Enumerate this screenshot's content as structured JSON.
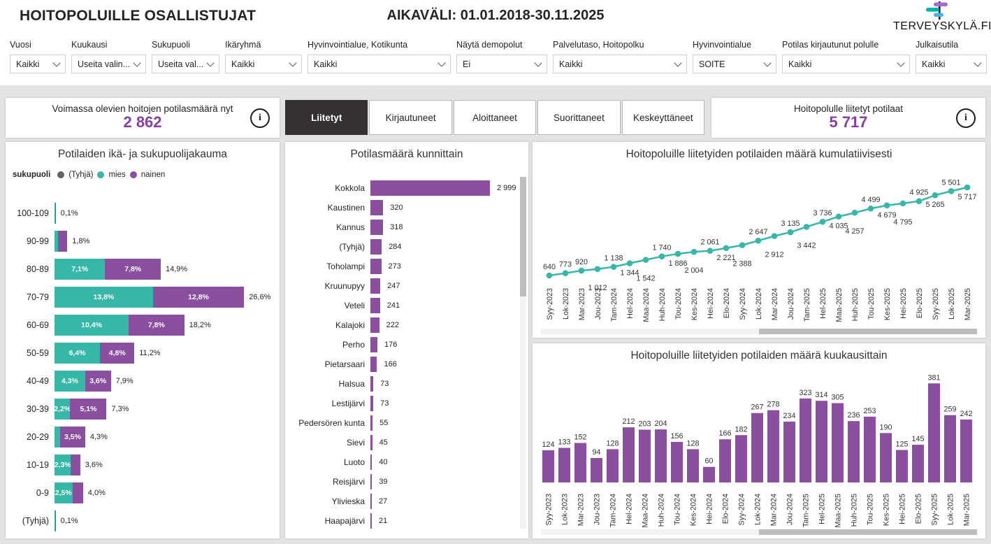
{
  "header": {
    "title": "HOITOPOLUILLE OSALLISTUJAT",
    "period": "AIKAVÄLI: 01.01.2018-30.11.2025",
    "logo_text": "TERVEYSKYLÄ.FI"
  },
  "filters": [
    {
      "label": "Vuosi",
      "value": "Kaikki"
    },
    {
      "label": "Kuukausi",
      "value": "Useita valin..."
    },
    {
      "label": "Sukupuoli",
      "value": "Useita val..."
    },
    {
      "label": "Ikäryhmä",
      "value": "Kaikki"
    },
    {
      "label": "Hyvinvointialue, Kotikunta",
      "value": "Kaikki"
    },
    {
      "label": "Näytä demopolut",
      "value": "Ei"
    },
    {
      "label": "Palvelutaso, Hoitopolku",
      "value": "Kaikki"
    },
    {
      "label": "Hyvinvointialue",
      "value": "SOITE"
    },
    {
      "label": "Potilas kirjautunut polulle",
      "value": "Kaikki"
    },
    {
      "label": "Julkaisutila",
      "value": "Kaikki"
    }
  ],
  "kpi_left": {
    "label": "Voimassa olevien hoitojen potilasmäärä nyt",
    "value": "2 862",
    "info_icon": "i"
  },
  "kpi_right": {
    "label": "Hoitopolulle liitetyt potilaat",
    "value": "5 717",
    "info_icon": "i"
  },
  "tabs": [
    {
      "label": "Liitetyt",
      "active": true
    },
    {
      "label": "Kirjautuneet",
      "active": false
    },
    {
      "label": "Aloittaneet",
      "active": false
    },
    {
      "label": "Suorittaneet",
      "active": false
    },
    {
      "label": "Keskeyttäneet",
      "active": false
    }
  ],
  "colors": {
    "purple": "#8b4f9f",
    "teal": "#36b7a8",
    "empty_gray": "#636363",
    "kpi_value": "#8640a5",
    "active_tab": "#333132",
    "page_bg": "#e3e3e3",
    "logo_purple": "#a668d5",
    "logo_teal": "#00b2a9",
    "logo_blue": "#41b6e6"
  },
  "chart_data": [
    {
      "type": "bar",
      "orientation": "horizontal-stacked",
      "title": "Potilaiden ikä- ja sukupuolijakauma",
      "legend_title": "sukupuoli",
      "legend": [
        {
          "label": "(Tyhjä)",
          "color": "#636363"
        },
        {
          "label": "mies",
          "color": "#36b7a8"
        },
        {
          "label": "nainen",
          "color": "#8b4f9f"
        }
      ],
      "categories": [
        "100-109",
        "90-99",
        "80-89",
        "70-79",
        "60-69",
        "50-59",
        "40-49",
        "30-39",
        "20-29",
        "10-19",
        "0-9",
        "(Tyhjä)"
      ],
      "series": [
        {
          "name": "mies",
          "color": "#36b7a8",
          "values": [
            0.05,
            0.5,
            7.1,
            13.8,
            10.4,
            6.4,
            4.3,
            2.2,
            0.8,
            2.3,
            2.5,
            0.05
          ],
          "labels": [
            "",
            "",
            "7,1%",
            "13,8%",
            "10,4%",
            "6,4%",
            "4,3%",
            "2,2%",
            "",
            "2,3%",
            "2,5%",
            ""
          ]
        },
        {
          "name": "nainen",
          "color": "#8b4f9f",
          "values": [
            0.05,
            1.3,
            7.8,
            12.8,
            7.8,
            4.8,
            3.6,
            5.1,
            3.5,
            1.3,
            1.5,
            0.05
          ],
          "labels": [
            "",
            "",
            "7,8%",
            "12,8%",
            "7,8%",
            "4,8%",
            "3,6%",
            "5,1%",
            "3,5%",
            "",
            "",
            ""
          ]
        }
      ],
      "totals": [
        "0,1%",
        "1,8%",
        "14,9%",
        "26,6%",
        "18,2%",
        "11,2%",
        "7,9%",
        "7,3%",
        "4,3%",
        "3,6%",
        "4,0%",
        "0,1%"
      ],
      "unit": "%"
    },
    {
      "type": "bar",
      "orientation": "horizontal",
      "title": "Potilasmäärä kunnittain",
      "categories": [
        "Kokkola",
        "Kaustinen",
        "Kannus",
        "(Tyhjä)",
        "Toholampi",
        "Kruunupyy",
        "Veteli",
        "Kalajoki",
        "Perho",
        "Pietarsaari",
        "Halsua",
        "Lestijärvi",
        "Pedersören kunta",
        "Sievi",
        "Luoto",
        "Reisjärvi",
        "Ylivieska",
        "Haapajärvi"
      ],
      "values": [
        2999,
        320,
        318,
        284,
        273,
        247,
        241,
        222,
        176,
        166,
        73,
        73,
        55,
        45,
        40,
        39,
        27,
        21
      ],
      "labels": [
        "2 999",
        "320",
        "318",
        "284",
        "273",
        "247",
        "241",
        "222",
        "176",
        "166",
        "73",
        "73",
        "55",
        "45",
        "40",
        "39",
        "27",
        "21"
      ],
      "bar_color": "#8b4f9f"
    },
    {
      "type": "line",
      "title": "Hoitopoluille liitetyiden potilaiden määrä kumulatiivisesti",
      "categories": [
        "Syy-2023",
        "Lok-2023",
        "Mar-2023",
        "Jou-2023",
        "Tam-2024",
        "Hel-2024",
        "Maa-2024",
        "Huh-2024",
        "Tou-2024",
        "Kes-2024",
        "Hei-2024",
        "Elo-2024",
        "Syy-2024",
        "Lok-2024",
        "Mar-2024",
        "Jou-2024",
        "Tam-2025",
        "Hel-2025",
        "Maa-2025",
        "Huh-2025",
        "Tou-2025",
        "Kes-2025",
        "Hei-2025",
        "Elo-2025",
        "Syy-2025",
        "Lok-2025",
        "Mar-2025"
      ],
      "values": [
        640,
        773,
        920,
        1012,
        1138,
        1344,
        1542,
        1740,
        1886,
        2004,
        2061,
        2221,
        2388,
        2647,
        2912,
        3135,
        3442,
        3736,
        4035,
        4257,
        4499,
        4679,
        4795,
        4925,
        5265,
        5501,
        5717
      ],
      "labels": [
        "640",
        "773",
        "920",
        "1 012",
        "1 138",
        "1 344",
        "1 542",
        "1 740",
        "1 886",
        "2 004",
        "2 061",
        "2 221",
        "2 388",
        "2 647",
        "2 912",
        "3 135",
        "3 442",
        "3 736",
        "4 035",
        "4 257",
        "4 499",
        "4 679",
        "4 795",
        "4 925",
        "5 265",
        "5 501",
        "5 717"
      ],
      "label_positions": [
        "above",
        "above",
        "above",
        "below2",
        "above",
        "below",
        "below2",
        "above",
        "below",
        "below2",
        "above",
        "below",
        "below2",
        "above",
        "below2",
        "above",
        "below2",
        "above",
        "below",
        "below2",
        "above",
        "below",
        "below2",
        "above",
        "below",
        "above",
        "below"
      ],
      "line_color": "#36b7a8",
      "ylim": [
        0,
        6000
      ],
      "grid": false
    },
    {
      "type": "bar",
      "orientation": "vertical",
      "title": "Hoitopoluille liitetyiden potilaiden määrä kuukausittain",
      "categories": [
        "Syy-2023",
        "Lok-2023",
        "Mar-2023",
        "Jou-2023",
        "Tam-2024",
        "Hel-2024",
        "Maa-2024",
        "Huh-2024",
        "Tou-2024",
        "Kes-2024",
        "Hei-2024",
        "Elo-2024",
        "Syy-2024",
        "Lok-2024",
        "Mar-2024",
        "Jou-2024",
        "Tam-2025",
        "Hel-2025",
        "Maa-2025",
        "Huh-2025",
        "Tou-2025",
        "Kes-2025",
        "Hei-2025",
        "Elo-2025",
        "Syy-2025",
        "Lok-2025",
        "Mar-2025"
      ],
      "values": [
        124,
        133,
        152,
        94,
        128,
        212,
        203,
        204,
        156,
        128,
        60,
        166,
        182,
        267,
        278,
        234,
        323,
        314,
        305,
        236,
        253,
        190,
        125,
        145,
        381,
        259,
        242
      ],
      "labels": [
        "124",
        "133",
        "152",
        "94",
        "128",
        "212",
        "203",
        "204",
        "156",
        "128",
        "60",
        "166",
        "182",
        "267",
        "278",
        "234",
        "323",
        "314",
        "305",
        "236",
        "253",
        "190",
        "125",
        "145",
        "381",
        "259",
        "242"
      ],
      "bar_color": "#8b4f9f",
      "ylim": [
        0,
        400
      ],
      "grid": false
    }
  ]
}
